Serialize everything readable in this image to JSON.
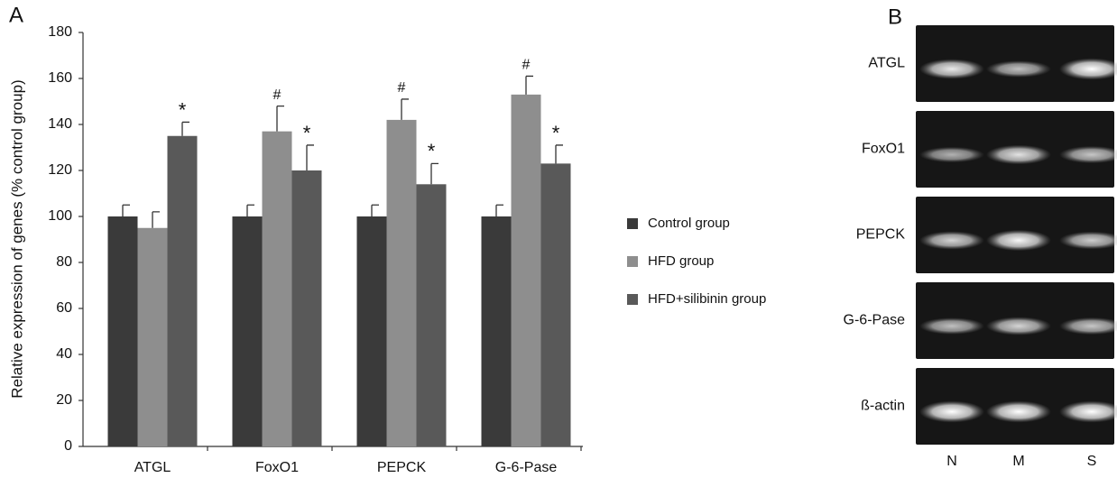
{
  "chart_data": {
    "type": "bar",
    "panel_label": "A",
    "y_label": "Relative expression of genes (% control group)",
    "categories": [
      "ATGL",
      "FoxO1",
      "PEPCK",
      "G-6-Pase"
    ],
    "series": [
      {
        "name": "Control group",
        "color": "#3a3a3a",
        "values": [
          100,
          100,
          100,
          100
        ],
        "errors": [
          5,
          5,
          5,
          5
        ],
        "annotations": [
          null,
          null,
          null,
          null
        ]
      },
      {
        "name": "HFD group",
        "color": "#8e8e8e",
        "values": [
          95,
          137,
          142,
          153
        ],
        "errors": [
          7,
          11,
          9,
          8
        ],
        "annotations": [
          null,
          "#",
          "#",
          "#"
        ]
      },
      {
        "name": "HFD+silibinin group",
        "color": "#595959",
        "values": [
          135,
          120,
          114,
          123
        ],
        "errors": [
          6,
          11,
          9,
          8
        ],
        "annotations": [
          "*",
          "*",
          "*",
          "*"
        ]
      }
    ],
    "ylim": [
      0,
      180
    ],
    "yticks": [
      0,
      20,
      40,
      60,
      80,
      100,
      120,
      140,
      160,
      180
    ],
    "grid": false,
    "legend": "right"
  },
  "gel": {
    "panel_label": "B",
    "rows": [
      "ATGL",
      "FoxO1",
      "PEPCK",
      "G-6-Pase",
      "ß-actin"
    ],
    "lanes": [
      "N",
      "M",
      "S"
    ]
  }
}
